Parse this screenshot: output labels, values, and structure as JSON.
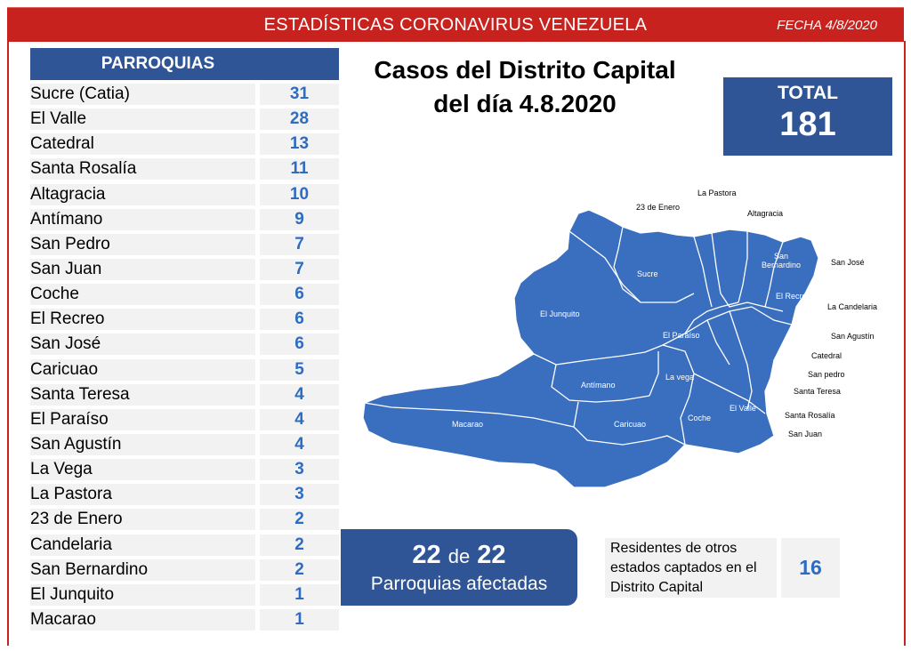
{
  "header": {
    "title": "ESTADÍSTICAS CORONAVIRUS VENEZUELA",
    "date": "FECHA 4/8/2020",
    "color": "#c8221e"
  },
  "parroquias": {
    "heading": "PARROQUIAS",
    "rows": [
      {
        "name": "Sucre (Catia)",
        "value": "31"
      },
      {
        "name": "El Valle",
        "value": "28"
      },
      {
        "name": "Catedral",
        "value": "13"
      },
      {
        "name": "Santa Rosalía",
        "value": "11"
      },
      {
        "name": "Altagracia",
        "value": "10"
      },
      {
        "name": "Antímano",
        "value": "9"
      },
      {
        "name": "San Pedro",
        "value": "7"
      },
      {
        "name": "San Juan",
        "value": "7"
      },
      {
        "name": "Coche",
        "value": "6"
      },
      {
        "name": "El Recreo",
        "value": "6"
      },
      {
        "name": "San José",
        "value": "6"
      },
      {
        "name": "Caricuao",
        "value": "5"
      },
      {
        "name": "Santa Teresa",
        "value": "4"
      },
      {
        "name": "El Paraíso",
        "value": "4"
      },
      {
        "name": "San Agustín",
        "value": "4"
      },
      {
        "name": "La Vega",
        "value": "3"
      },
      {
        "name": "La Pastora",
        "value": "3"
      },
      {
        "name": "23 de Enero",
        "value": "2"
      },
      {
        "name": "Candelaria",
        "value": "2"
      },
      {
        "name": "San Bernardino",
        "value": "2"
      },
      {
        "name": "El Junquito",
        "value": "1"
      },
      {
        "name": "Macarao",
        "value": "1"
      }
    ]
  },
  "main_title": {
    "line1": "Casos del Distrito Capital",
    "line2": "del día 4.8.2020"
  },
  "total": {
    "label": "TOTAL",
    "value": "181"
  },
  "map": {
    "fill_color": "#3a6fc0",
    "inner_labels": {
      "sucre": "Sucre",
      "el_junquito": "El Junquito",
      "san_bernardino": "San\nBernardino",
      "el_recreo": "El Recreo",
      "el_paraiso": "El Paraíso",
      "la_vega": "La vega",
      "antimano": "Antímano",
      "el_valle": "El Valle",
      "coche": "Coche",
      "caricuao": "Caricuao",
      "macarao": "Macarao"
    },
    "outer_labels": {
      "la_pastora": "La Pastora",
      "enero": "23 de Enero",
      "altagracia": "Altagracia",
      "san_jose": "San José",
      "la_candelaria": "La Candelaria",
      "san_agustin": "San Agustín",
      "catedral": "Catedral",
      "san_pedro": "San pedro",
      "santa_teresa": "Santa Teresa",
      "santa_rosalia": "Santa Rosalía",
      "san_juan": "San Juan"
    }
  },
  "affected": {
    "count": "22",
    "de": "de",
    "total": "22",
    "label": "Parroquias afectadas"
  },
  "residents": {
    "line1": "Residentes de otros",
    "line2": "estados captados en el",
    "line3": "Distrito Capital",
    "value": "16"
  },
  "accent_color": "#2f5597"
}
